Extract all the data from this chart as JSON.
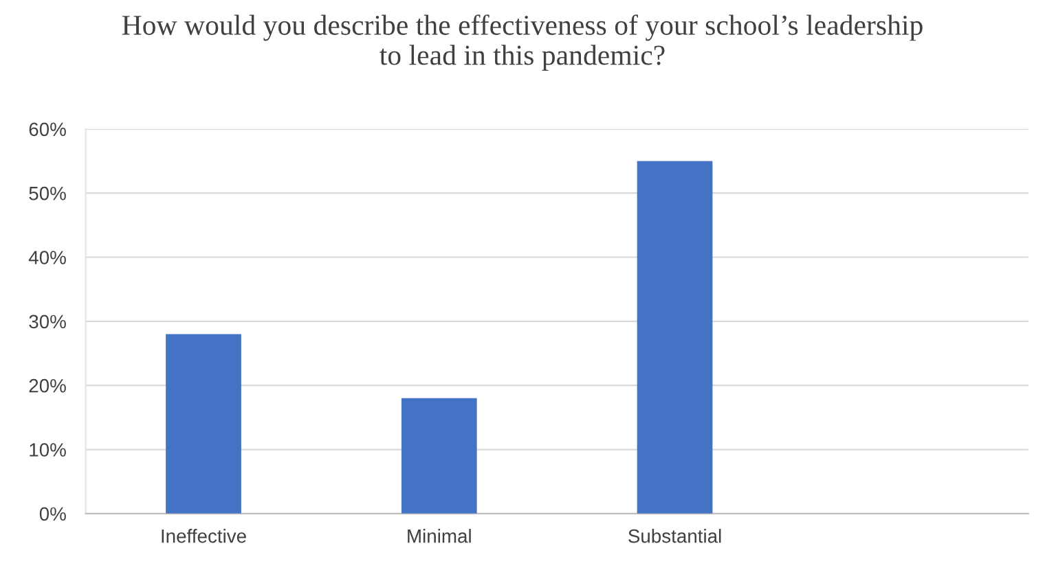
{
  "chart_data": {
    "type": "bar",
    "title": "How would you describe the effectiveness of your school’s leadership\nto lead in this pandemic?",
    "categories": [
      "Ineffective",
      "Minimal",
      "Substantial",
      null
    ],
    "values": [
      28,
      18,
      55,
      null
    ],
    "color": "#4472c4",
    "ylim": [
      0,
      60
    ],
    "yticks": [
      {
        "value": 0,
        "label": "0%"
      },
      {
        "value": 10,
        "label": "10%"
      },
      {
        "value": 20,
        "label": "20%"
      },
      {
        "value": 30,
        "label": "30%"
      },
      {
        "value": 40,
        "label": "40%"
      },
      {
        "value": 50,
        "label": "50%"
      },
      {
        "value": 60,
        "label": "60%"
      }
    ],
    "grid": "y"
  }
}
